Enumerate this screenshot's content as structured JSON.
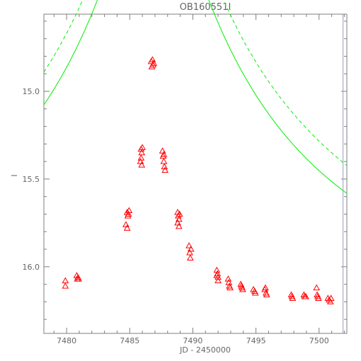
{
  "chart_data": {
    "type": "scatter",
    "title": "OB160551I",
    "xlabel": "JD - 2450000",
    "ylabel": "I",
    "xlim": [
      7478.2,
      7502.2
    ],
    "ylim": [
      16.38,
      14.56
    ],
    "y_inverted": true,
    "xticks": [
      7480,
      7485,
      7490,
      7495,
      7500
    ],
    "xtick_labels": [
      "7480",
      "7485",
      "7490",
      "7495",
      "7500"
    ],
    "yticks": [
      15.0,
      15.5,
      16.0
    ],
    "ytick_labels": [
      "15.0",
      "15.5",
      "16.0"
    ],
    "grid": false,
    "colors": {
      "points": "#ff0000",
      "model": "#00ee00",
      "axes": "#7f7f7f",
      "marker": "#9999cc"
    },
    "vertical_marker_x": 7501.9,
    "model_curves": [
      {
        "style": "solid",
        "u0": 0.095,
        "t0": 7486.85,
        "tE": 25.0,
        "base": 16.24
      },
      {
        "style": "dashed",
        "u0": 0.075,
        "t0": 7486.85,
        "tE": 30.0,
        "base": 16.24
      }
    ],
    "series": [
      {
        "marker": "triangle",
        "points": [
          [
            7479.9,
            16.08
          ],
          [
            7479.9,
            16.11
          ],
          [
            7480.8,
            16.05
          ],
          [
            7480.9,
            16.06
          ],
          [
            7480.95,
            16.07
          ],
          [
            7480.85,
            16.07
          ],
          [
            7484.7,
            15.76
          ],
          [
            7484.8,
            15.78
          ],
          [
            7484.8,
            15.69
          ],
          [
            7484.9,
            15.7
          ],
          [
            7484.95,
            15.68
          ],
          [
            7484.85,
            15.71
          ],
          [
            7485.9,
            15.33
          ],
          [
            7485.95,
            15.35
          ],
          [
            7486.0,
            15.32
          ],
          [
            7485.9,
            15.38
          ],
          [
            7485.85,
            15.4
          ],
          [
            7485.95,
            15.42
          ],
          [
            7486.7,
            14.83
          ],
          [
            7486.8,
            14.82
          ],
          [
            7486.9,
            14.84
          ],
          [
            7486.85,
            14.85
          ],
          [
            7486.75,
            14.86
          ],
          [
            7487.6,
            15.34
          ],
          [
            7487.65,
            15.37
          ],
          [
            7487.7,
            15.4
          ],
          [
            7487.75,
            15.43
          ],
          [
            7487.8,
            15.45
          ],
          [
            7487.7,
            15.36
          ],
          [
            7488.8,
            15.69
          ],
          [
            7488.85,
            15.71
          ],
          [
            7488.9,
            15.73
          ],
          [
            7488.8,
            15.75
          ],
          [
            7488.95,
            15.7
          ],
          [
            7488.9,
            15.77
          ],
          [
            7489.7,
            15.88
          ],
          [
            7489.75,
            15.92
          ],
          [
            7489.8,
            15.95
          ],
          [
            7489.85,
            15.9
          ],
          [
            7491.9,
            16.02
          ],
          [
            7491.95,
            16.04
          ],
          [
            7492.0,
            16.06
          ],
          [
            7492.0,
            16.08
          ],
          [
            7491.9,
            16.05
          ],
          [
            7492.8,
            16.07
          ],
          [
            7492.85,
            16.09
          ],
          [
            7492.9,
            16.11
          ],
          [
            7492.95,
            16.12
          ],
          [
            7493.8,
            16.1
          ],
          [
            7493.85,
            16.11
          ],
          [
            7493.9,
            16.12
          ],
          [
            7493.95,
            16.13
          ],
          [
            7494.8,
            16.13
          ],
          [
            7494.9,
            16.14
          ],
          [
            7494.95,
            16.15
          ],
          [
            7495.7,
            16.13
          ],
          [
            7495.75,
            16.12
          ],
          [
            7495.8,
            16.15
          ],
          [
            7495.85,
            16.16
          ],
          [
            7497.8,
            16.16
          ],
          [
            7497.85,
            16.17
          ],
          [
            7497.9,
            16.18
          ],
          [
            7498.8,
            16.16
          ],
          [
            7498.85,
            16.17
          ],
          [
            7498.95,
            16.17
          ],
          [
            7499.8,
            16.12
          ],
          [
            7499.85,
            16.16
          ],
          [
            7499.9,
            16.17
          ],
          [
            7499.95,
            16.18
          ],
          [
            7500.7,
            16.18
          ],
          [
            7500.8,
            16.19
          ],
          [
            7500.9,
            16.2
          ],
          [
            7500.95,
            16.18
          ]
        ]
      }
    ]
  }
}
